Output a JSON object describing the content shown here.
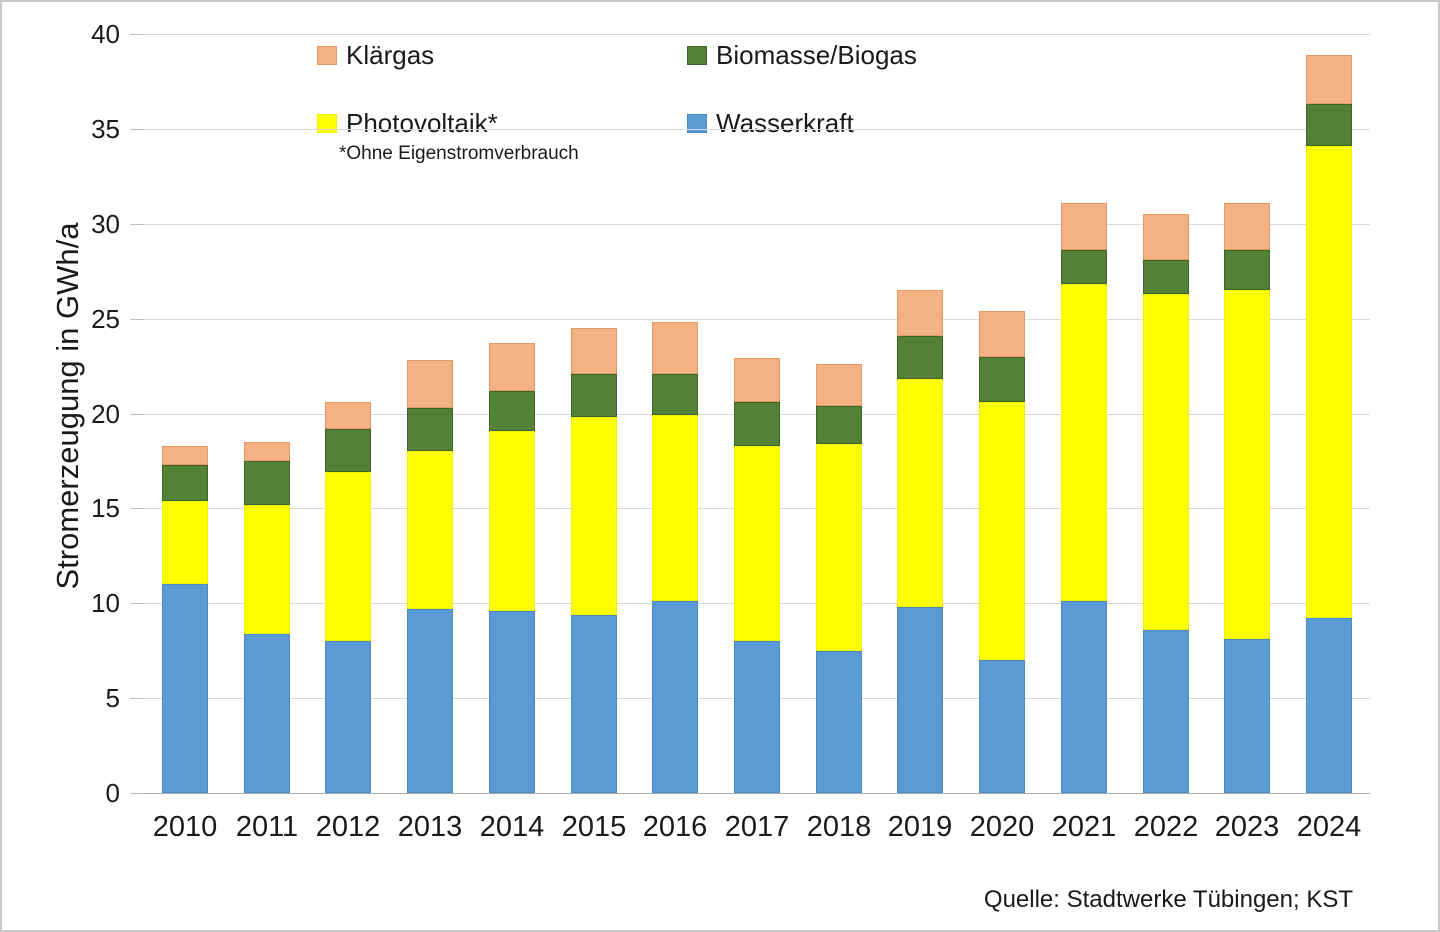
{
  "chart": {
    "ylabel": "Stromerzeugung in GWh/a",
    "footnote": "*Ohne Eigenstromverbrauch",
    "source": "Quelle: Stadtwerke Tübingen; KST",
    "legend": [
      {
        "label": "Klärgas",
        "color": "#F4B183",
        "border": "#E59A64"
      },
      {
        "label": "Biomasse/Biogas",
        "color": "#538135",
        "border": "#3F6428"
      },
      {
        "label": "Photovoltaik*",
        "color": "#FFFF00",
        "border": "#F2F200"
      },
      {
        "label": "Wasserkraft",
        "color": "#5B9BD5",
        "border": "#4A89C2"
      }
    ],
    "chart_data": {
      "type": "bar",
      "stacked": true,
      "title": "",
      "xlabel": "",
      "ylabel": "Stromerzeugung in GWh/a",
      "ylim": [
        0,
        40
      ],
      "yticks": [
        0,
        5,
        10,
        15,
        20,
        25,
        30,
        35,
        40
      ],
      "grid": true,
      "legend_position": "top",
      "categories": [
        "2010",
        "2011",
        "2012",
        "2013",
        "2014",
        "2015",
        "2016",
        "2017",
        "2018",
        "2019",
        "2020",
        "2021",
        "2022",
        "2023",
        "2024"
      ],
      "series": [
        {
          "name": "Wasserkraft",
          "color": "#5B9BD5",
          "border_class": "seg-border-blue",
          "values": [
            11.0,
            8.4,
            8.0,
            9.7,
            9.6,
            9.4,
            10.1,
            8.0,
            7.5,
            9.8,
            7.0,
            10.1,
            8.6,
            8.1,
            9.2
          ]
        },
        {
          "name": "Photovoltaik*",
          "color": "#FFFF00",
          "border_class": "seg-border-yellow",
          "values": [
            4.4,
            6.8,
            8.9,
            8.3,
            9.5,
            10.4,
            9.8,
            10.3,
            10.9,
            12.0,
            13.6,
            16.7,
            17.7,
            18.4,
            24.9
          ]
        },
        {
          "name": "Biomasse/Biogas",
          "color": "#538135",
          "border_class": "seg-border-green",
          "values": [
            1.9,
            2.3,
            2.3,
            2.3,
            2.1,
            2.3,
            2.2,
            2.3,
            2.0,
            2.3,
            2.4,
            1.8,
            1.8,
            2.1,
            2.2
          ]
        },
        {
          "name": "Klärgas",
          "color": "#F4B183",
          "border_class": "seg-border-salmon",
          "values": [
            1.0,
            1.0,
            1.4,
            2.5,
            2.5,
            2.4,
            2.7,
            2.3,
            2.2,
            2.4,
            2.4,
            2.5,
            2.4,
            2.5,
            2.6
          ]
        }
      ],
      "totals": [
        18.3,
        18.5,
        20.6,
        22.8,
        23.7,
        24.5,
        24.8,
        22.9,
        22.6,
        26.5,
        25.4,
        31.1,
        30.5,
        31.1,
        38.9
      ]
    }
  }
}
